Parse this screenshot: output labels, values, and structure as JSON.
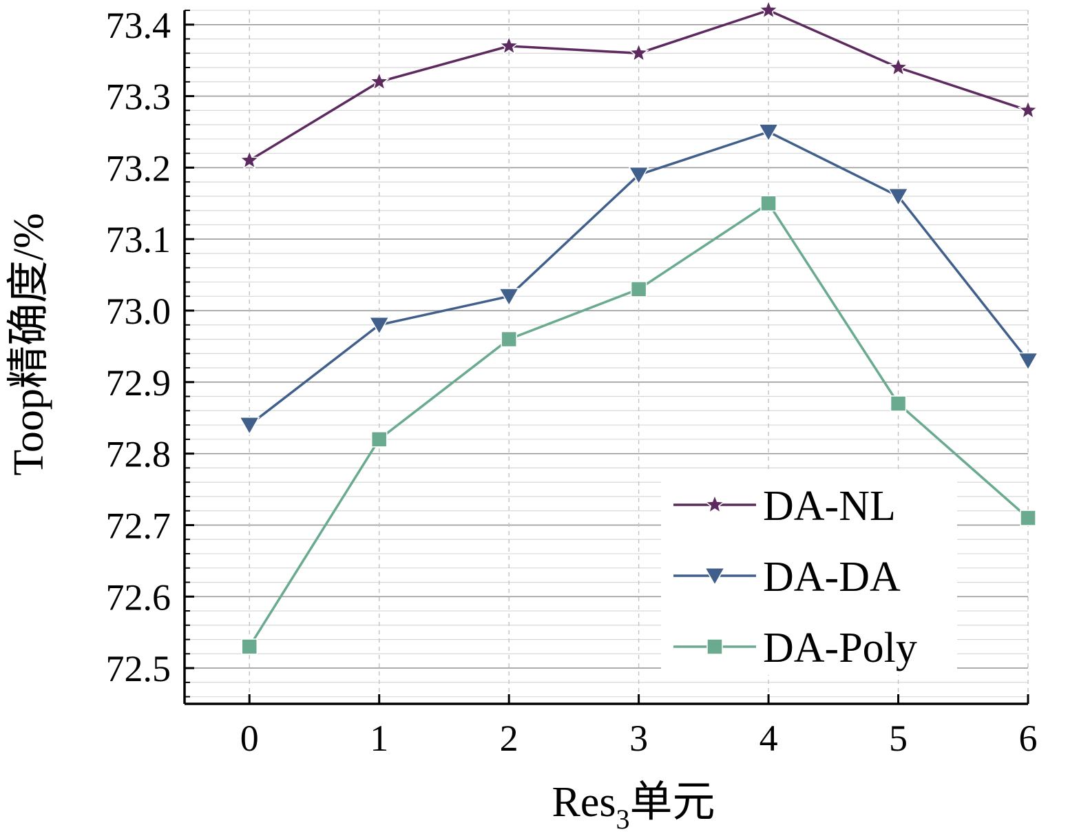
{
  "chart_data": {
    "type": "line",
    "x": [
      0,
      1,
      2,
      3,
      4,
      5,
      6
    ],
    "xlim": [
      -0.5,
      6
    ],
    "ylim": [
      72.45,
      73.42
    ],
    "xticks": [
      "0",
      "1",
      "2",
      "3",
      "4",
      "5",
      "6"
    ],
    "yticks": [
      "72.5",
      "72.6",
      "72.7",
      "72.8",
      "72.9",
      "73.0",
      "73.1",
      "73.2",
      "73.3",
      "73.4"
    ],
    "xlabel_main": "Res",
    "xlabel_sub": "3",
    "xlabel_suffix": "单元",
    "ylabel": "Toop精确度/%",
    "grid": true,
    "legend_position": "bottom-right",
    "series": [
      {
        "name": "DA-NL",
        "marker": "star",
        "color": "#5c2a5e",
        "values": [
          73.21,
          73.32,
          73.37,
          73.36,
          73.42,
          73.34,
          73.28
        ]
      },
      {
        "name": "DA-DA",
        "marker": "triangle-down",
        "color": "#405f8a",
        "values": [
          72.84,
          72.98,
          73.02,
          73.19,
          73.25,
          73.16,
          72.93
        ]
      },
      {
        "name": "DA-Poly",
        "marker": "square",
        "color": "#6aaa8e",
        "values": [
          72.53,
          72.82,
          72.96,
          73.03,
          73.15,
          72.87,
          72.71
        ]
      }
    ]
  }
}
